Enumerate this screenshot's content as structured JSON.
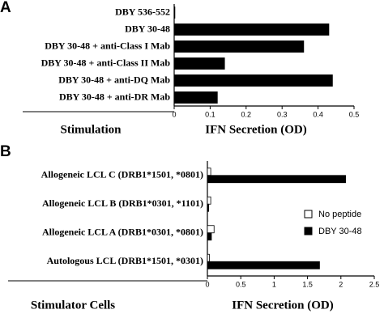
{
  "chart_data": [
    {
      "type": "bar",
      "orientation": "horizontal",
      "panel": "A",
      "categories": [
        "DBY 536-552",
        "DBY 30-48",
        "DBY 30-48 + anti-Class I Mab",
        "DBY 30-48 + anti-Class II Mab",
        "DBY 30-48 + anti-DQ Mab",
        "DBY 30-48 + anti-DR Mab"
      ],
      "values": [
        0.002,
        0.43,
        0.36,
        0.14,
        0.44,
        0.12
      ],
      "color": "#000000",
      "category_axis_label": "Stimulation",
      "x_label": "IFN Secretion (OD)",
      "xlim": [
        0,
        0.5
      ],
      "xticks": [
        0,
        0.1,
        0.2,
        0.3,
        0.4,
        0.5
      ]
    },
    {
      "type": "bar",
      "orientation": "horizontal",
      "panel": "B",
      "categories": [
        "Allogeneic LCL C (DRB1*1501, *0801)",
        "Allogeneic LCL B (DRB1*0301, *1101)",
        "Allogeneic LCL A (DRB1*0301, *0801)",
        "Autologous LCL (DRB1*1501, *0301)"
      ],
      "series": [
        {
          "name": "No peptide",
          "color": "#ffffff",
          "values": [
            0.05,
            0.05,
            0.1,
            0.03
          ]
        },
        {
          "name": "DBY 30-48",
          "color": "#000000",
          "values": [
            2.07,
            0.02,
            0.06,
            1.68
          ]
        }
      ],
      "category_axis_label": "Stimulator Cells",
      "x_label": "IFN Secretion (OD)",
      "xlim": [
        0,
        2.5
      ],
      "xticks": [
        0,
        0.5,
        1,
        1.5,
        2,
        2.5
      ],
      "legend": "right"
    }
  ]
}
